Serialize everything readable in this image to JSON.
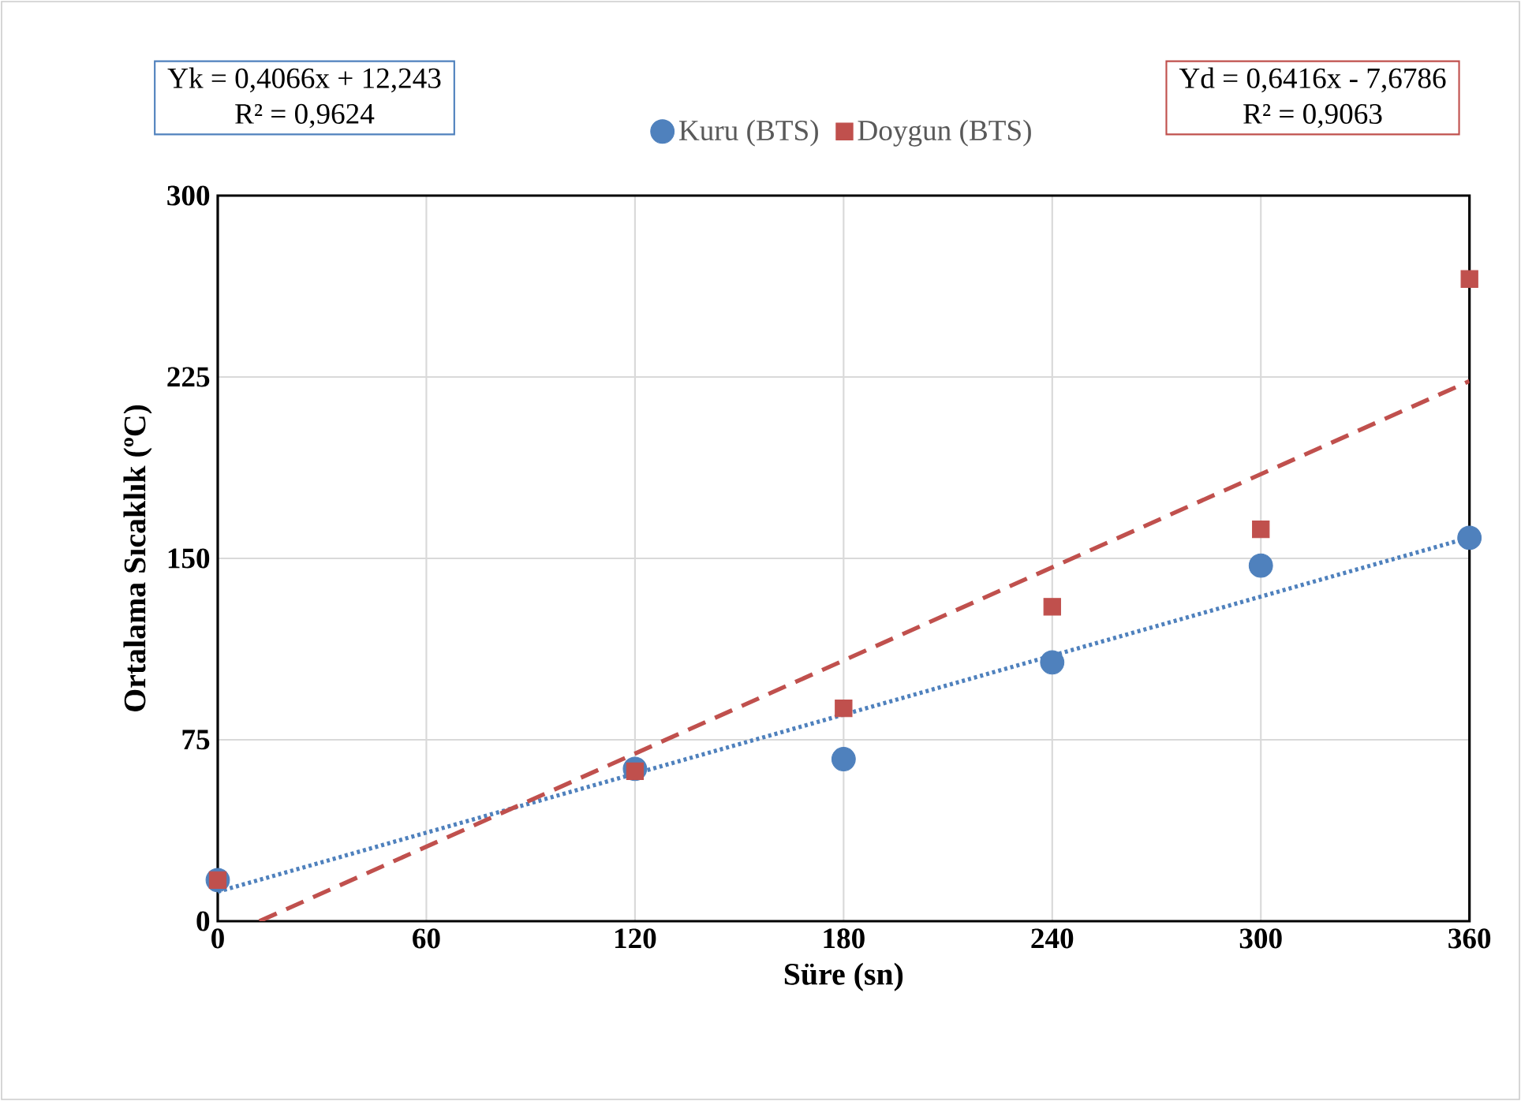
{
  "chart_data": {
    "type": "scatter",
    "xlabel": "Süre (sn)",
    "ylabel": "Ortalama Sıcaklık (ºC)",
    "x": [
      0,
      120,
      180,
      240,
      300,
      360
    ],
    "series": [
      {
        "name": "Kuru (BTS)",
        "color": "#4f81bd",
        "marker": "circle",
        "values": [
          17,
          63,
          67,
          107,
          147,
          158.5
        ]
      },
      {
        "name": "Doygun (BTS)",
        "color": "#c0504d",
        "marker": "square",
        "values": [
          17,
          62,
          88,
          130,
          162,
          265.5
        ]
      },
      {
        "type": "line",
        "color": "#4f81bd",
        "line_style": "dotted",
        "marker": "none",
        "x": [
          0,
          360
        ],
        "values": [
          12.2,
          158.6
        ]
      },
      {
        "type": "line",
        "color": "#c0504d",
        "line_style": "dashed",
        "marker": "none",
        "x": [
          12,
          360
        ],
        "values": [
          0,
          223.3
        ]
      }
    ],
    "annotations": [
      "Yk = 0,4066x + 12,243",
      "R² = 0,9624",
      "Yd = 0,6416x - 7,6786",
      "R² = 0,9063"
    ],
    "xlim": [
      0,
      360
    ],
    "xticks": [
      0,
      60,
      120,
      180,
      240,
      300,
      360
    ],
    "ylim": [
      0,
      300
    ],
    "yticks": [
      0,
      75,
      150,
      225,
      300
    ],
    "grid": true,
    "legend": "top"
  }
}
